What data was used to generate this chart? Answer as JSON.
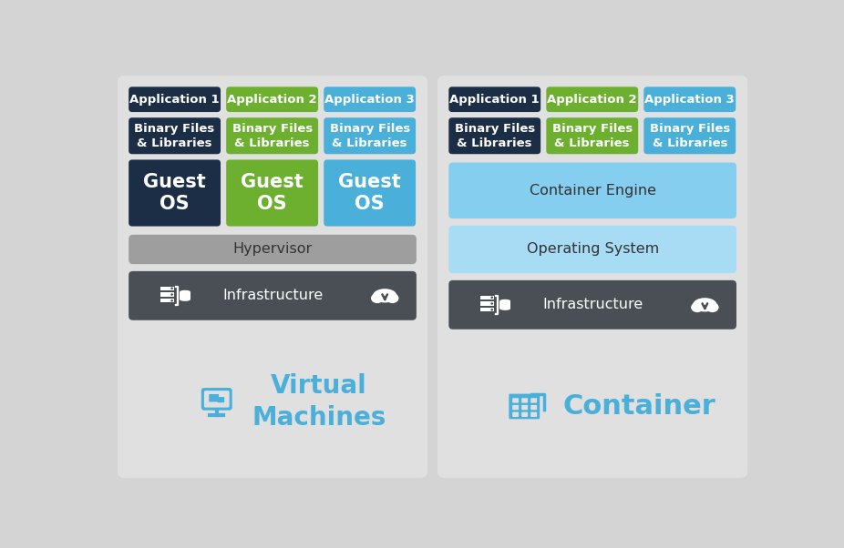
{
  "bg_color": "#d4d4d4",
  "panel_bg": "#e0e0e0",
  "dark_navy": "#1b2e45",
  "green": "#6daf2f",
  "blue": "#4aafd9",
  "light_blue": "#85cef0",
  "lighter_blue": "#a8dcf5",
  "gray_hypervisor": "#9e9e9e",
  "dark_gray_infra": "#4a4f55",
  "white": "#ffffff",
  "title_blue": "#4aafd9",
  "text_dark": "#333333",
  "vm_title": "Virtual\nMachines",
  "container_title": "Container",
  "app_labels": [
    "Application 1",
    "Application 2",
    "Application 3"
  ],
  "bin_label": "Binary Files\n& Libraries",
  "guestos_label": "Guest\nOS",
  "hypervisor_label": "Hypervisor",
  "infra_label": "Infrastructure",
  "container_engine_label": "Container Engine",
  "operating_system_label": "Operating System",
  "col_colors": [
    "#1b2e45",
    "#6daf2f",
    "#4aafd9"
  ]
}
